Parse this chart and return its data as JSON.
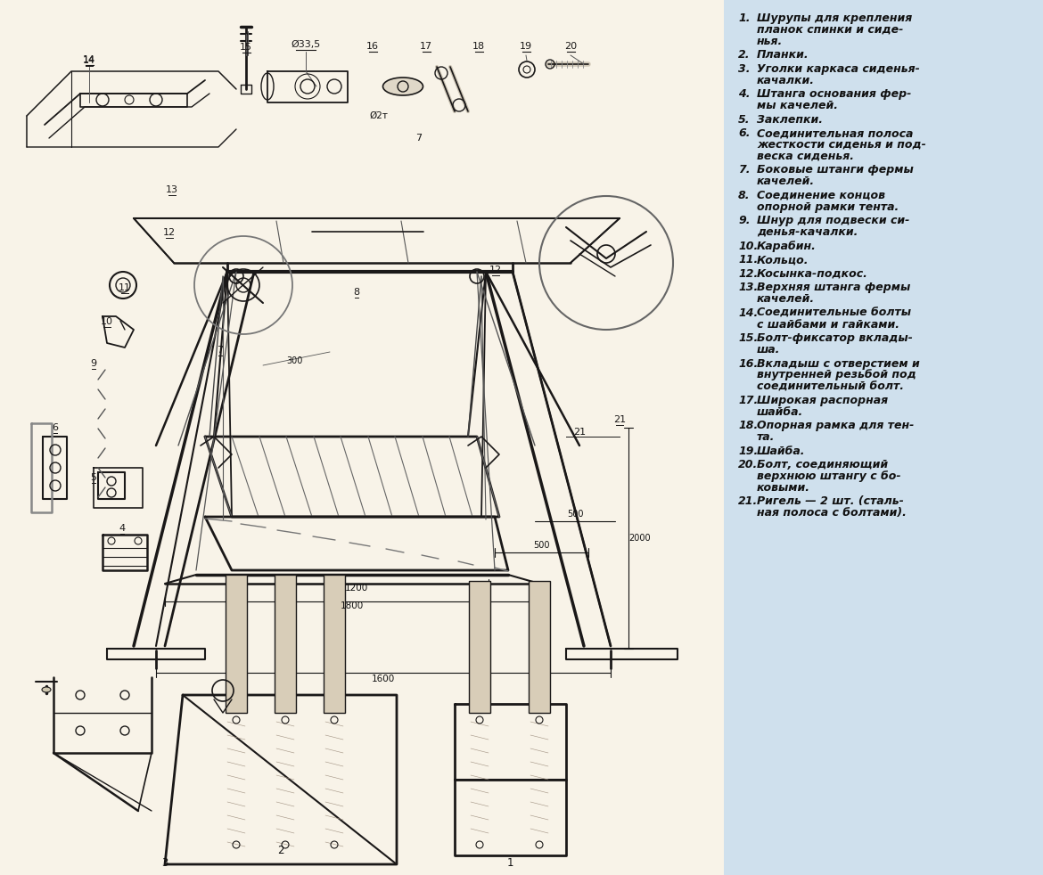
{
  "background_color": "#f5f0e8",
  "panel_color": "#cfe0ed",
  "panel_border": "#b0c8d8",
  "text_color": "#111111",
  "figure_bg": "#f0ebe0",
  "items": [
    {
      "num": "1.",
      "lines": [
        "Шурупы для крепления",
        "планок спинки и сиде-",
        "нья."
      ]
    },
    {
      "num": "2.",
      "lines": [
        "Планки."
      ]
    },
    {
      "num": "3.",
      "lines": [
        "Уголки каркаса сиденья-",
        "качалки."
      ]
    },
    {
      "num": "4.",
      "lines": [
        "Штанга основания фер-",
        "мы качелей."
      ]
    },
    {
      "num": "5.",
      "lines": [
        "Заклепки."
      ]
    },
    {
      "num": "6.",
      "lines": [
        "Соединительная полоса",
        "жесткости сиденья и под-",
        "веска сиденья."
      ]
    },
    {
      "num": "7.",
      "lines": [
        "Боковые штанги фермы",
        "качелей."
      ]
    },
    {
      "num": "8.",
      "lines": [
        "Соединение концов",
        "опорной рамки тента."
      ]
    },
    {
      "num": "9.",
      "lines": [
        "Шнур для подвески си-",
        "денья-качалки."
      ]
    },
    {
      "num": "10.",
      "lines": [
        "Карабин."
      ]
    },
    {
      "num": "11.",
      "lines": [
        "Кольцо."
      ]
    },
    {
      "num": "12.",
      "lines": [
        "Косынка-подкос."
      ]
    },
    {
      "num": "13.",
      "lines": [
        "Верхняя штанга фермы",
        "качелей."
      ]
    },
    {
      "num": "14.",
      "lines": [
        "Соединительные болты",
        "с шайбами и гайками."
      ]
    },
    {
      "num": "15.",
      "lines": [
        "Болт-фиксатор вклады-",
        "ша."
      ]
    },
    {
      "num": "16.",
      "lines": [
        "Вкладыш с отверстием и",
        "внутренней резьбой под",
        "соединительный болт."
      ]
    },
    {
      "num": "17.",
      "lines": [
        "Широкая распорная",
        "шайба."
      ]
    },
    {
      "num": "18.",
      "lines": [
        "Опорная рамка для тен-",
        "та."
      ]
    },
    {
      "num": "19.",
      "lines": [
        "Шайба."
      ]
    },
    {
      "num": "20.",
      "lines": [
        "Болт, соединяющий",
        "верхнюю штангу с бо-",
        "ковыми."
      ]
    },
    {
      "num": "21.",
      "lines": [
        "Ригель — 2 шт. (сталь-",
        "ная полоса с болтами)."
      ]
    }
  ],
  "lc": "#1a1818",
  "lc2": "#333333",
  "dim_color": "#222222"
}
